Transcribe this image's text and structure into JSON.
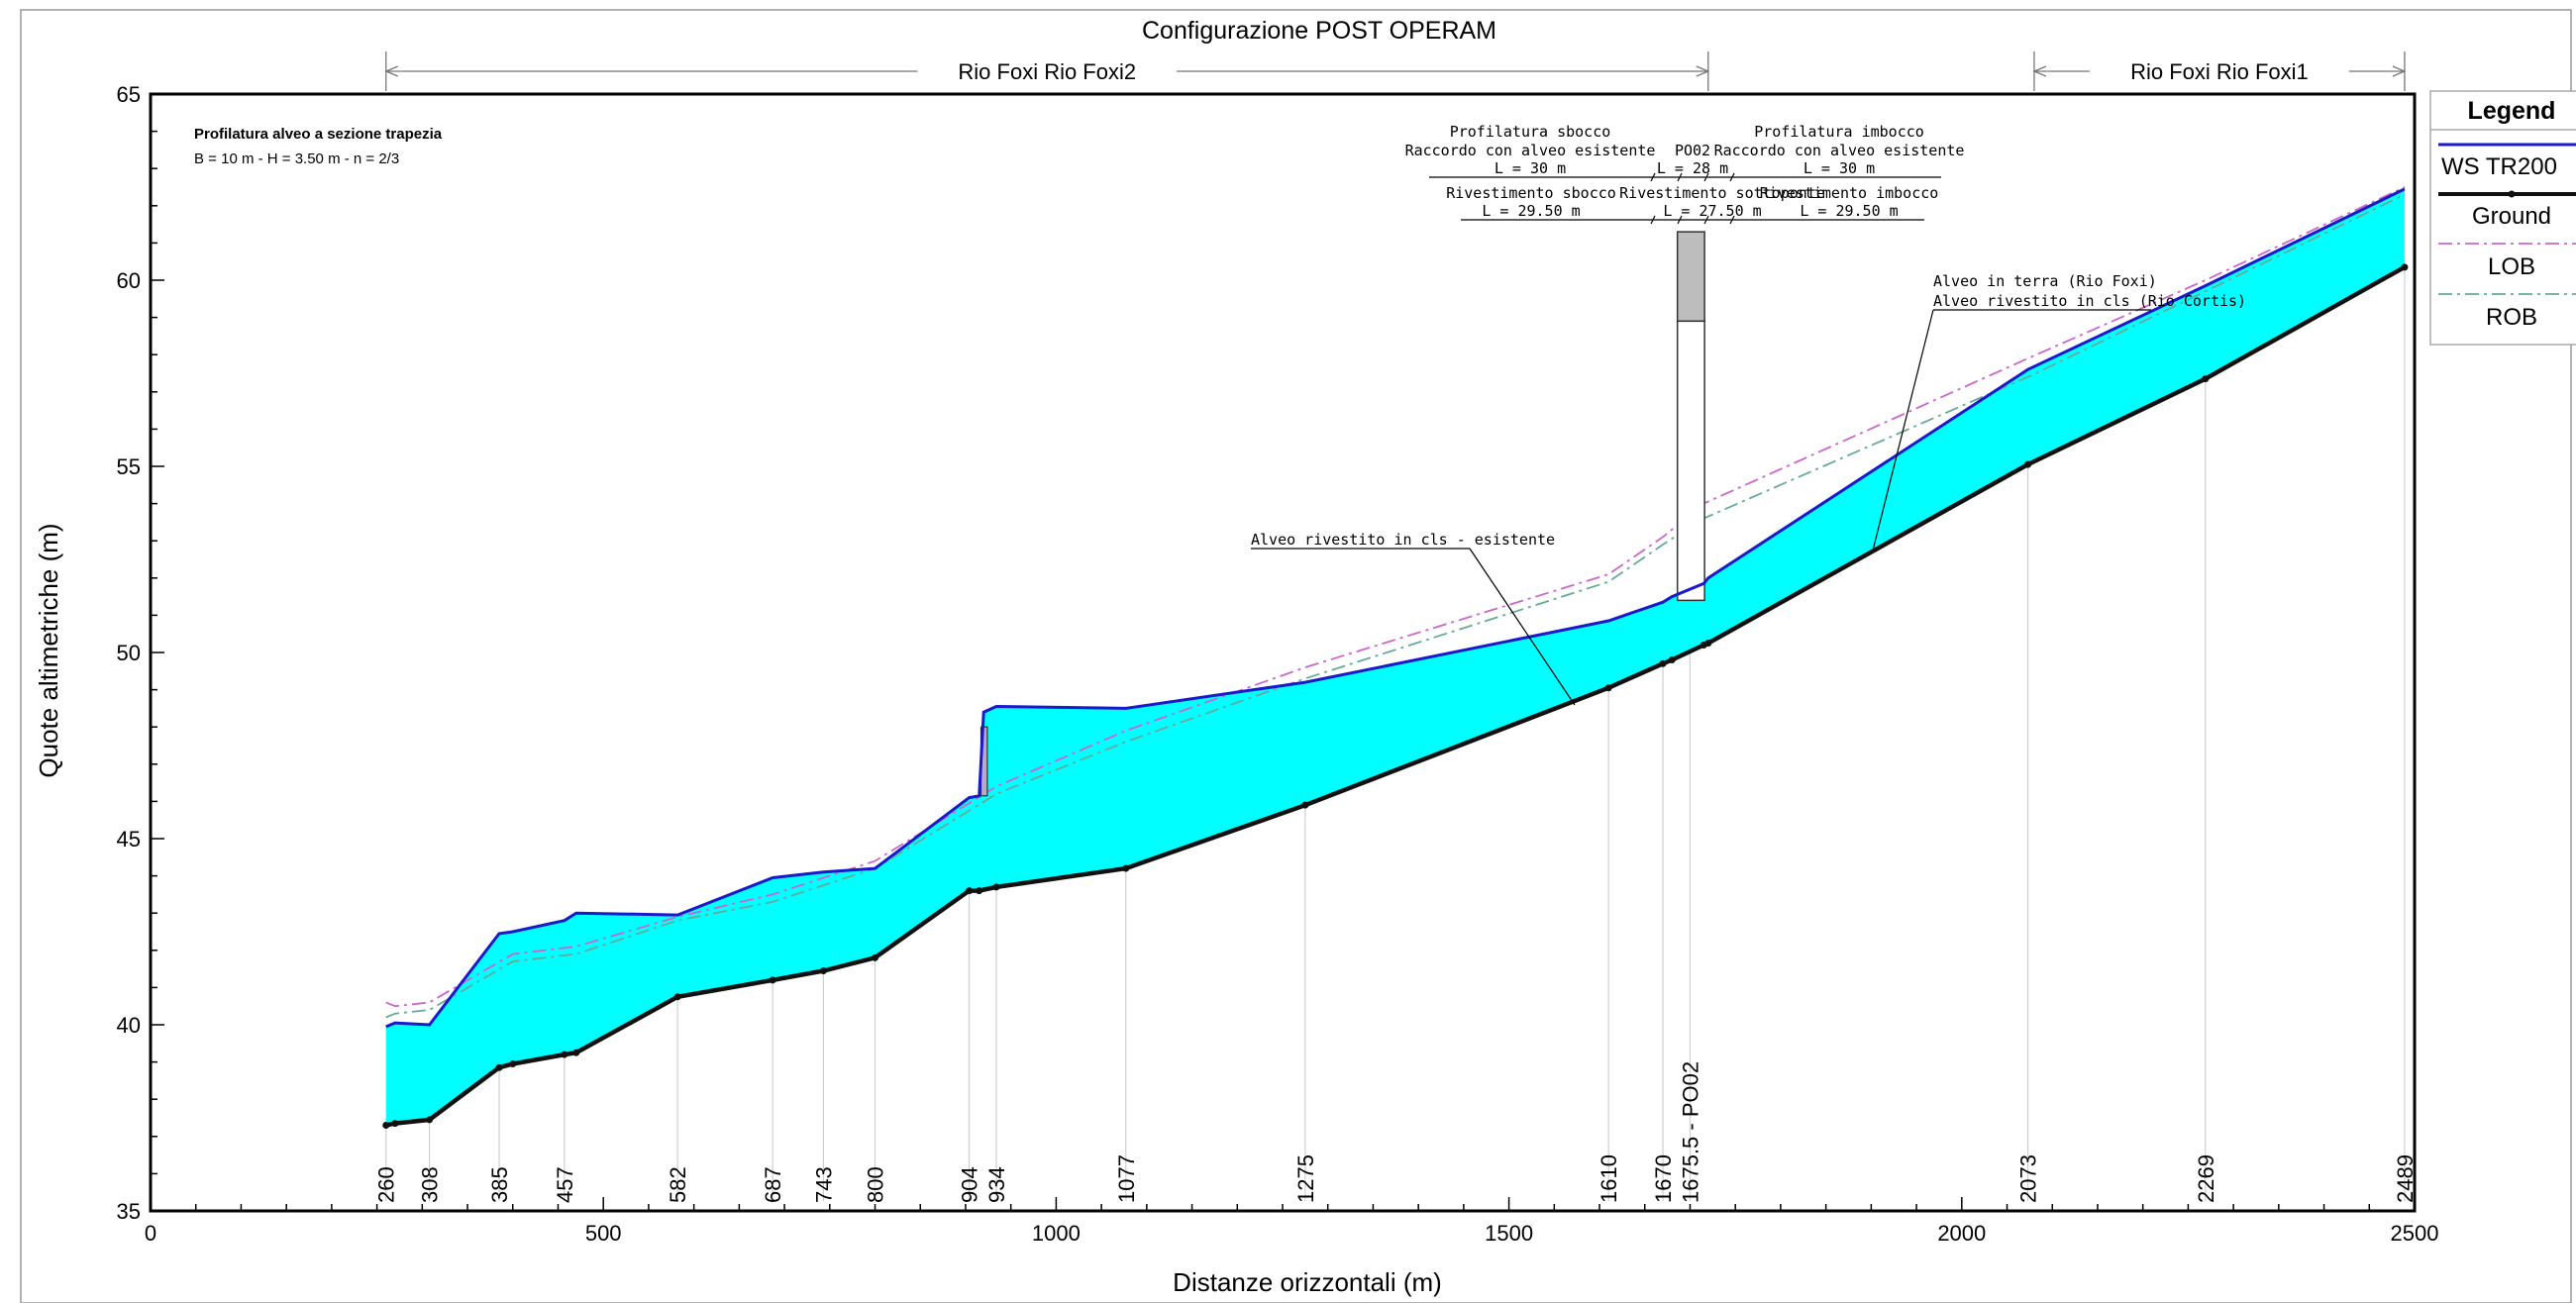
{
  "chart_data": {
    "type": "area",
    "title": "Configurazione POST OPERAM",
    "xlabel": "Distanze orizzontali (m)",
    "ylabel": "Quote altimetriche  (m)",
    "xlim": [
      0,
      2500
    ],
    "ylim": [
      35,
      65
    ],
    "x_ticks": [
      0,
      500,
      1000,
      1500,
      2000,
      2500
    ],
    "y_ticks": [
      35,
      40,
      45,
      50,
      55,
      60,
      65
    ],
    "legend": {
      "title": "Legend",
      "placement": "right",
      "entries": [
        {
          "label": "WS  TR200",
          "color": "#0000cc",
          "style": "solid"
        },
        {
          "label": "Ground",
          "color": "#000000",
          "style": "solid-thick"
        },
        {
          "label": "LOB",
          "color": "#cc66cc",
          "style": "dash-dot"
        },
        {
          "label": "ROB",
          "color": "#66aa99",
          "style": "dash-dot"
        }
      ]
    },
    "fill_color": "#00ffff",
    "reaches": [
      {
        "label": "Rio Foxi Rio Foxi2",
        "x_start": 260,
        "x_end": 1720
      },
      {
        "label": "Rio Foxi Rio Foxi1",
        "x_start": 2080,
        "x_end": 2489
      }
    ],
    "series": [
      {
        "name": "Ground",
        "x": [
          260,
          270,
          308,
          385,
          400,
          457,
          470,
          582,
          687,
          743,
          800,
          904,
          915,
          934,
          1077,
          1275,
          1610,
          1670,
          1680,
          1715,
          1720,
          2073,
          2269,
          2489
        ],
        "y": [
          37.3,
          37.35,
          37.45,
          38.85,
          38.95,
          39.2,
          39.25,
          40.75,
          41.2,
          41.45,
          41.8,
          43.6,
          43.6,
          43.7,
          44.2,
          45.9,
          49.05,
          49.7,
          49.8,
          50.2,
          50.25,
          55.05,
          57.35,
          60.35
        ]
      },
      {
        "name": "WS  TR200",
        "x": [
          260,
          270,
          308,
          385,
          400,
          457,
          470,
          582,
          687,
          743,
          800,
          904,
          915,
          920,
          934,
          1077,
          1275,
          1610,
          1670,
          1680,
          1715,
          1720,
          2073,
          2269,
          2489
        ],
        "y": [
          39.95,
          40.05,
          40.0,
          42.45,
          42.5,
          42.8,
          43.0,
          42.95,
          43.95,
          44.1,
          44.2,
          46.1,
          46.15,
          48.4,
          48.55,
          48.5,
          49.2,
          50.85,
          51.35,
          51.5,
          51.85,
          52.0,
          57.6,
          59.85,
          62.45
        ]
      },
      {
        "name": "LOB",
        "x": [
          260,
          270,
          308,
          400,
          470,
          582,
          687,
          800,
          934,
          1077,
          1275,
          1610,
          1670,
          1715,
          2073,
          2269,
          2489
        ],
        "y": [
          40.6,
          40.5,
          40.6,
          41.9,
          42.1,
          42.9,
          43.5,
          44.4,
          46.4,
          47.9,
          49.6,
          52.1,
          53.1,
          54.0,
          57.9,
          60.0,
          62.5
        ]
      },
      {
        "name": "ROB",
        "x": [
          260,
          270,
          308,
          400,
          470,
          582,
          687,
          800,
          934,
          1077,
          1275,
          1610,
          1670,
          1715,
          2073,
          2269,
          2489
        ],
        "y": [
          40.2,
          40.3,
          40.4,
          41.7,
          41.9,
          42.8,
          43.3,
          44.2,
          46.2,
          47.6,
          49.3,
          51.9,
          52.9,
          53.6,
          57.4,
          59.7,
          62.3
        ]
      }
    ],
    "sections": [
      {
        "label": "260",
        "x": 260,
        "ground": 37.3
      },
      {
        "label": "308",
        "x": 308,
        "ground": 37.45
      },
      {
        "label": "385",
        "x": 385,
        "ground": 38.85
      },
      {
        "label": "457",
        "x": 457,
        "ground": 39.2
      },
      {
        "label": "582",
        "x": 582,
        "ground": 40.75
      },
      {
        "label": "687",
        "x": 687,
        "ground": 41.2
      },
      {
        "label": "743",
        "x": 743,
        "ground": 41.45
      },
      {
        "label": "800",
        "x": 800,
        "ground": 41.8
      },
      {
        "label": "904",
        "x": 904,
        "ground": 43.6
      },
      {
        "label": "934",
        "x": 934,
        "ground": 43.7
      },
      {
        "label": "1077",
        "x": 1077,
        "ground": 44.2
      },
      {
        "label": "1275",
        "x": 1275,
        "ground": 45.9
      },
      {
        "label": "1610",
        "x": 1610,
        "ground": 49.05
      },
      {
        "label": "1670",
        "x": 1670,
        "ground": 49.7
      },
      {
        "label": "1675.5 - PO02",
        "x": 1700,
        "ground": 50.0
      },
      {
        "label": "2073",
        "x": 2073,
        "ground": 55.05
      },
      {
        "label": "2269",
        "x": 2269,
        "ground": 57.35
      },
      {
        "label": "2489",
        "x": 2489,
        "ground": 60.35
      }
    ],
    "annotations": {
      "section_title": "Profilatura alveo a sezione trapezia",
      "section_params": "B = 10 m - H = 3.50 m - n = 2/3",
      "sbocco_profile": [
        "Profilatura sbocco",
        "Raccordo con alveo esistente",
        "L = 30 m"
      ],
      "po02": [
        "PO02",
        "L = 28 m"
      ],
      "imbocco_profile": [
        "Profilatura imbocco",
        "Raccordo con alveo esistente",
        "L = 30 m"
      ],
      "sbocco_lining": [
        "Rivestimento sbocco",
        "L = 29.50 m"
      ],
      "bridge_lining": [
        "Rivestimento sottoponte",
        "L = 27.50 m"
      ],
      "imbocco_lining": [
        "Rivestimento imbocco",
        "L = 29.50 m"
      ],
      "existing_lined": "Alveo rivestito in cls - esistente",
      "earth_channel": "Alveo in terra (Rio Foxi)",
      "lined_channel": "Alveo rivestito in cls (Rio Cortis)"
    }
  }
}
